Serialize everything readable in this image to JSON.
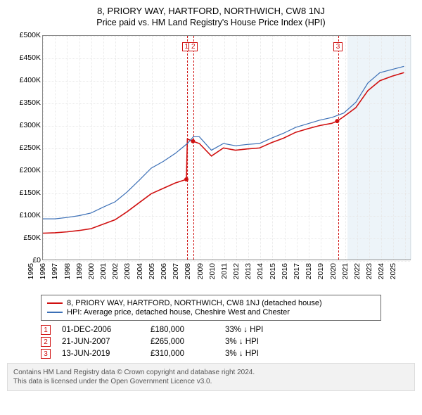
{
  "title": "8, PRIORY WAY, HARTFORD, NORTHWICH, CW8 1NJ",
  "subtitle": "Price paid vs. HM Land Registry's House Price Index (HPI)",
  "chart": {
    "type": "line",
    "background_color": "#ffffff",
    "grid_color": "#e8e8e8",
    "border_color": "#888888",
    "shade_start_year": 2020.2,
    "shade_end_year": 2025.5,
    "shade_color": "#eaf2f8",
    "y": {
      "min": 0,
      "max": 500000,
      "step": 50000,
      "ticks": [
        "£0",
        "£50K",
        "£100K",
        "£150K",
        "£200K",
        "£250K",
        "£300K",
        "£350K",
        "£400K",
        "£450K",
        "£500K"
      ],
      "label_fontsize": 10.5
    },
    "x": {
      "min": 1995,
      "max": 2025.5,
      "ticks": [
        1995,
        1996,
        1997,
        1998,
        1999,
        2000,
        2001,
        2002,
        2003,
        2004,
        2005,
        2006,
        2007,
        2008,
        2009,
        2010,
        2011,
        2012,
        2013,
        2014,
        2015,
        2016,
        2017,
        2018,
        2019,
        2020,
        2021,
        2022,
        2023,
        2024,
        2025
      ],
      "label_fontsize": 10.5
    },
    "series": [
      {
        "name": "8, PRIORY WAY, HARTFORD, NORTHWICH, CW8 1NJ (detached house)",
        "color": "#d01010",
        "line_width": 1.6,
        "points": [
          [
            1995,
            60000
          ],
          [
            1996,
            61000
          ],
          [
            1997,
            63000
          ],
          [
            1998,
            66000
          ],
          [
            1999,
            70000
          ],
          [
            2000,
            80000
          ],
          [
            2001,
            90000
          ],
          [
            2002,
            108000
          ],
          [
            2003,
            128000
          ],
          [
            2004,
            148000
          ],
          [
            2005,
            160000
          ],
          [
            2006,
            172000
          ],
          [
            2006.92,
            180000
          ],
          [
            2007,
            270000
          ],
          [
            2007.47,
            265000
          ],
          [
            2008,
            260000
          ],
          [
            2009,
            232000
          ],
          [
            2010,
            250000
          ],
          [
            2011,
            245000
          ],
          [
            2012,
            248000
          ],
          [
            2013,
            250000
          ],
          [
            2014,
            262000
          ],
          [
            2015,
            272000
          ],
          [
            2016,
            285000
          ],
          [
            2017,
            293000
          ],
          [
            2018,
            300000
          ],
          [
            2019,
            305000
          ],
          [
            2019.45,
            310000
          ],
          [
            2020,
            320000
          ],
          [
            2021,
            340000
          ],
          [
            2022,
            378000
          ],
          [
            2023,
            400000
          ],
          [
            2024,
            410000
          ],
          [
            2025,
            418000
          ]
        ]
      },
      {
        "name": "HPI: Average price, detached house, Cheshire West and Chester",
        "color": "#3b6fb6",
        "line_width": 1.2,
        "points": [
          [
            1995,
            92000
          ],
          [
            1996,
            92000
          ],
          [
            1997,
            95000
          ],
          [
            1998,
            99000
          ],
          [
            1999,
            105000
          ],
          [
            2000,
            118000
          ],
          [
            2001,
            130000
          ],
          [
            2002,
            152000
          ],
          [
            2003,
            178000
          ],
          [
            2004,
            205000
          ],
          [
            2005,
            220000
          ],
          [
            2006,
            238000
          ],
          [
            2007,
            260000
          ],
          [
            2007.5,
            275000
          ],
          [
            2008,
            275000
          ],
          [
            2009,
            245000
          ],
          [
            2010,
            260000
          ],
          [
            2011,
            255000
          ],
          [
            2012,
            258000
          ],
          [
            2013,
            260000
          ],
          [
            2014,
            272000
          ],
          [
            2015,
            283000
          ],
          [
            2016,
            296000
          ],
          [
            2017,
            304000
          ],
          [
            2018,
            312000
          ],
          [
            2019,
            318000
          ],
          [
            2020,
            328000
          ],
          [
            2021,
            352000
          ],
          [
            2022,
            395000
          ],
          [
            2023,
            418000
          ],
          [
            2024,
            425000
          ],
          [
            2025,
            432000
          ]
        ]
      }
    ],
    "markers": [
      {
        "id": "1",
        "year": 2006.92,
        "value": 180000
      },
      {
        "id": "2",
        "year": 2007.47,
        "value": 265000
      },
      {
        "id": "3",
        "year": 2019.45,
        "value": 310000
      }
    ],
    "marker_box_color": "#d01010"
  },
  "legend": {
    "items": [
      {
        "color": "#d01010",
        "label": "8, PRIORY WAY, HARTFORD, NORTHWICH, CW8 1NJ (detached house)"
      },
      {
        "color": "#3b6fb6",
        "label": "HPI: Average price, detached house, Cheshire West and Chester"
      }
    ]
  },
  "transactions": [
    {
      "id": "1",
      "date": "01-DEC-2006",
      "price": "£180,000",
      "delta": "33% ↓ HPI"
    },
    {
      "id": "2",
      "date": "21-JUN-2007",
      "price": "£265,000",
      "delta": "3% ↓ HPI"
    },
    {
      "id": "3",
      "date": "13-JUN-2019",
      "price": "£310,000",
      "delta": "3% ↓ HPI"
    }
  ],
  "footer": {
    "line1": "Contains HM Land Registry data © Crown copyright and database right 2024.",
    "line2": "This data is licensed under the Open Government Licence v3.0."
  }
}
